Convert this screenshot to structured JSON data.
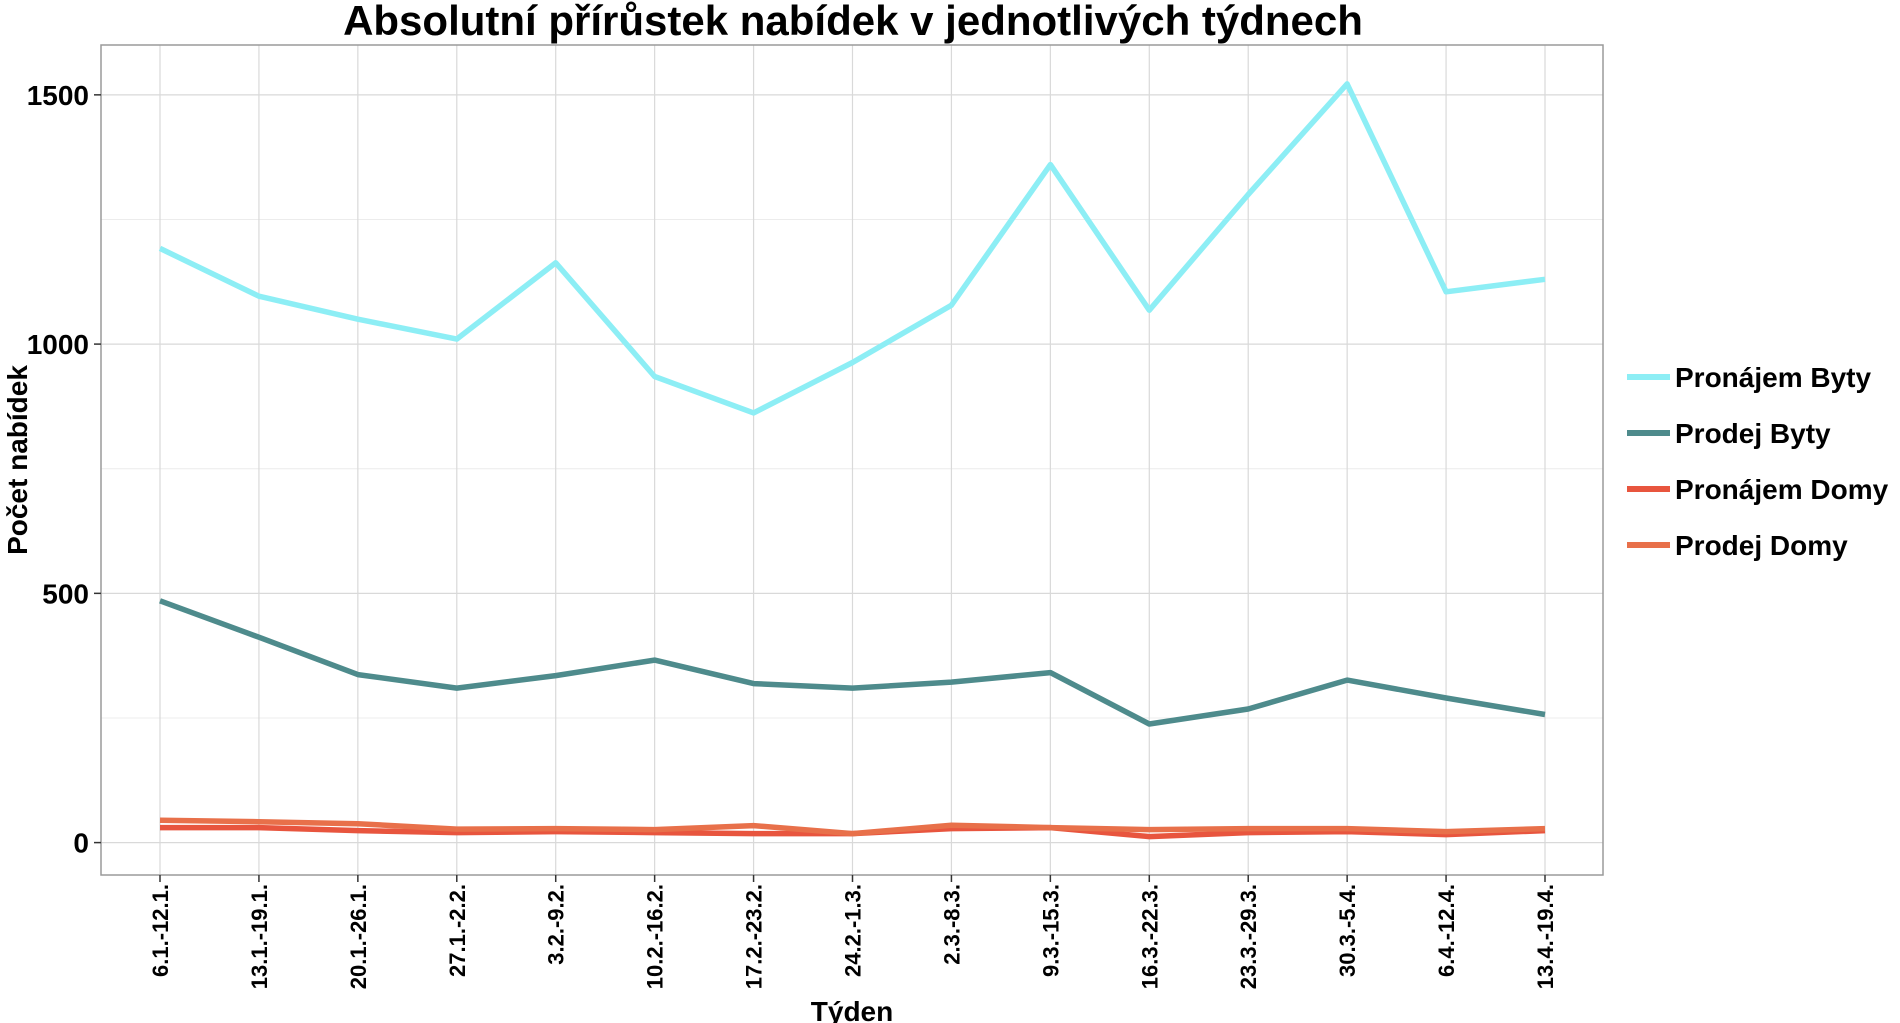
{
  "chart_data": {
    "type": "line",
    "title": "Absolutní přírůstek nabídek v jednotlivých týdnech",
    "xlabel": "Týden",
    "ylabel": "Počet nabídek",
    "categories": [
      "6.1.-12.1.",
      "13.1.-19.1.",
      "20.1.-26.1.",
      "27.1.-2.2.",
      "3.2.-9.2.",
      "10.2.-16.2.",
      "17.2.-23.2.",
      "24.2.-1.3.",
      "2.3.-8.3.",
      "9.3.-15.3.",
      "16.3.-22.3.",
      "23.3.-29.3.",
      "30.3.-5.4.",
      "6.4.-12.4.",
      "13.4.-19.4."
    ],
    "ylim": [
      -65,
      1600
    ],
    "yticks": [
      0,
      500,
      1000,
      1500
    ],
    "grid": true,
    "legend_position": "right",
    "series": [
      {
        "name": "Pronájem Byty",
        "color": "#8DEEF5",
        "values": [
          1192,
          1096,
          1050,
          1010,
          1163,
          935,
          862,
          963,
          1078,
          1360,
          1068,
          1300,
          1522,
          1105,
          1130
        ]
      },
      {
        "name": "Prodej Byty",
        "color": "#4E8B8C",
        "values": [
          485,
          412,
          337,
          310,
          335,
          366,
          319,
          310,
          322,
          341,
          238,
          268,
          326,
          290,
          257
        ]
      },
      {
        "name": "Pronájem Domy",
        "color": "#E8553E",
        "values": [
          30,
          30,
          24,
          20,
          22,
          20,
          18,
          18,
          28,
          30,
          12,
          20,
          22,
          16,
          24
        ]
      },
      {
        "name": "Prodej Domy",
        "color": "#E8704A",
        "values": [
          45,
          42,
          38,
          27,
          28,
          26,
          34,
          18,
          35,
          30,
          26,
          28,
          28,
          22,
          28
        ]
      }
    ]
  }
}
